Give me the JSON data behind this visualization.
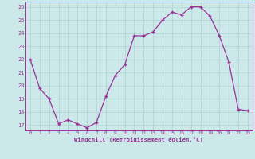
{
  "x": [
    0,
    1,
    2,
    3,
    4,
    5,
    6,
    7,
    8,
    9,
    10,
    11,
    12,
    13,
    14,
    15,
    16,
    17,
    18,
    19,
    20,
    21,
    22,
    23
  ],
  "y": [
    22.0,
    19.8,
    19.0,
    17.1,
    17.4,
    17.1,
    16.8,
    17.2,
    19.2,
    20.8,
    21.6,
    23.8,
    23.8,
    24.1,
    25.0,
    25.6,
    25.4,
    26.0,
    26.0,
    25.3,
    23.8,
    21.8,
    18.2,
    18.1
  ],
  "line_color": "#993399",
  "marker": "+",
  "bg_color": "#cce8e8",
  "grid_color": "#aad4d4",
  "tick_color": "#993399",
  "label_color": "#993399",
  "xlabel": "Windchill (Refroidissement éolien,°C)",
  "ylim": [
    16.6,
    26.4
  ],
  "xlim": [
    -0.5,
    23.5
  ],
  "yticks": [
    17,
    18,
    19,
    20,
    21,
    22,
    23,
    24,
    25,
    26
  ],
  "xticks": [
    0,
    1,
    2,
    3,
    4,
    5,
    6,
    7,
    8,
    9,
    10,
    11,
    12,
    13,
    14,
    15,
    16,
    17,
    18,
    19,
    20,
    21,
    22,
    23
  ]
}
